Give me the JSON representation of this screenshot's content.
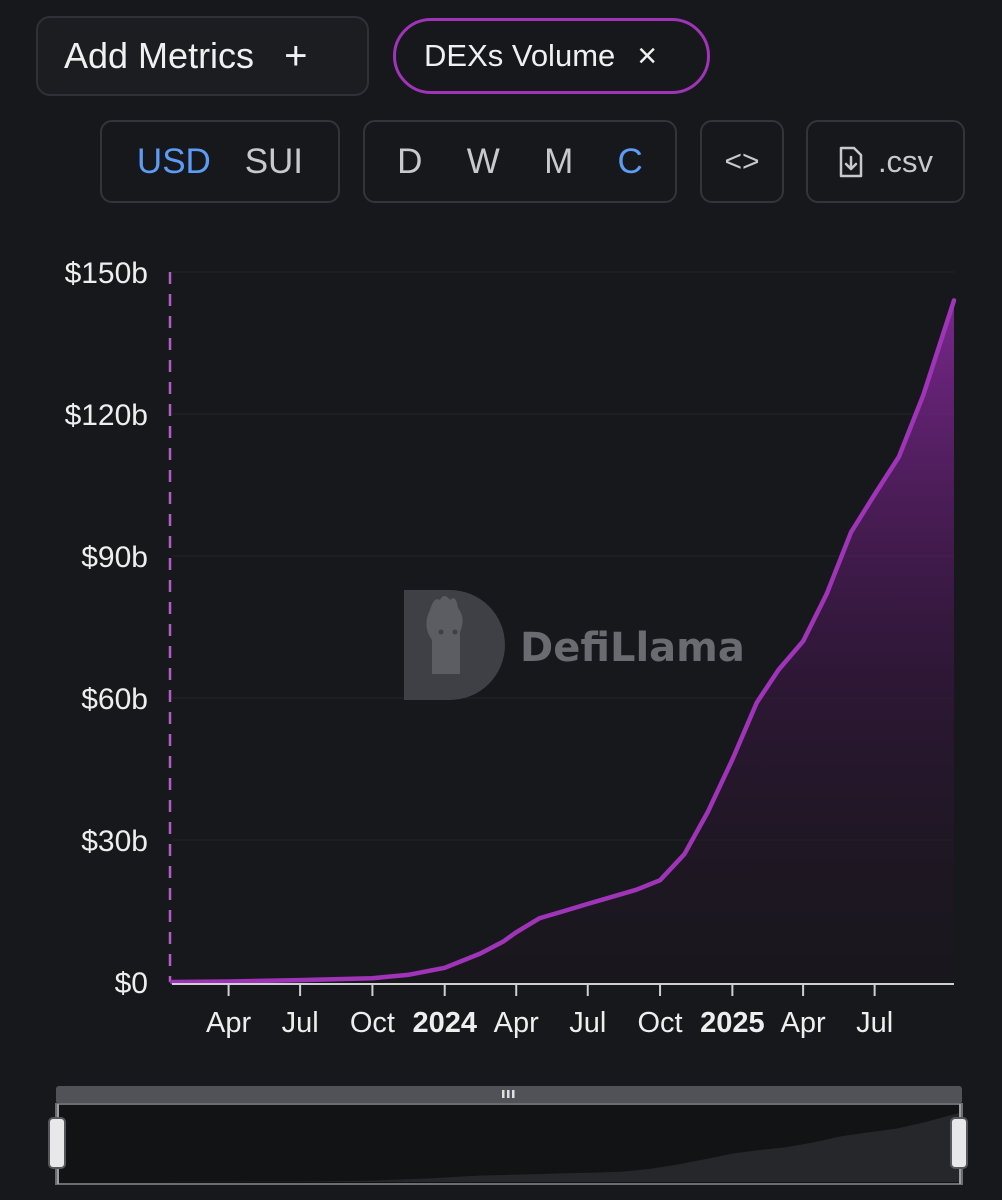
{
  "toolbar": {
    "add_metrics_label": "Add Metrics",
    "add_icon": "+",
    "metric_chip_label": "DEXs Volume",
    "close_icon": "×",
    "currency_options": [
      "USD",
      "SUI"
    ],
    "currency_selected": "USD",
    "period_options": [
      "D",
      "W",
      "M",
      "C"
    ],
    "period_selected": "C",
    "embed_label": "<>",
    "csv_label": ".csv"
  },
  "watermark": "DefiLlama",
  "colors": {
    "background": "#17181b",
    "line": "#a034b8",
    "accent_blue": "#5c9cf5"
  },
  "chart_data": {
    "type": "area",
    "y_tick_labels": [
      "$0",
      "$30b",
      "$60b",
      "$90b",
      "$120b",
      "$150b"
    ],
    "y_ticks": [
      0,
      30,
      60,
      90,
      120,
      150
    ],
    "ylim": [
      0,
      150
    ],
    "x_tick_labels": [
      {
        "date": "2023-04-01",
        "label": "Apr",
        "bold": false
      },
      {
        "date": "2023-07-01",
        "label": "Jul",
        "bold": false
      },
      {
        "date": "2023-10-01",
        "label": "Oct",
        "bold": false
      },
      {
        "date": "2024-01-01",
        "label": "2024",
        "bold": true
      },
      {
        "date": "2024-04-01",
        "label": "Apr",
        "bold": false
      },
      {
        "date": "2024-07-01",
        "label": "Jul",
        "bold": false
      },
      {
        "date": "2024-10-01",
        "label": "Oct",
        "bold": false
      },
      {
        "date": "2025-01-01",
        "label": "2025",
        "bold": true
      },
      {
        "date": "2025-04-01",
        "label": "Apr",
        "bold": false
      },
      {
        "date": "2025-07-01",
        "label": "Jul",
        "bold": false
      }
    ],
    "xlim": [
      "2023-01-19",
      "2025-10-10"
    ],
    "series": [
      {
        "values": [
          [
            "2023-01-19",
            0
          ],
          [
            "2023-04-01",
            0.1
          ],
          [
            "2023-07-01",
            0.4
          ],
          [
            "2023-10-01",
            0.8
          ],
          [
            "2023-11-15",
            1.5
          ],
          [
            "2024-01-01",
            3
          ],
          [
            "2024-02-15",
            6
          ],
          [
            "2024-03-15",
            8.5
          ],
          [
            "2024-04-01",
            10.5
          ],
          [
            "2024-05-01",
            13.5
          ],
          [
            "2024-06-01",
            15
          ],
          [
            "2024-07-01",
            16.5
          ],
          [
            "2024-08-01",
            18
          ],
          [
            "2024-09-01",
            19.5
          ],
          [
            "2024-10-01",
            21.5
          ],
          [
            "2024-11-01",
            27
          ],
          [
            "2024-12-01",
            36
          ],
          [
            "2025-01-01",
            47
          ],
          [
            "2025-02-01",
            59
          ],
          [
            "2025-03-01",
            66
          ],
          [
            "2025-04-01",
            72
          ],
          [
            "2025-05-01",
            82
          ],
          [
            "2025-06-01",
            95
          ],
          [
            "2025-07-01",
            103
          ],
          [
            "2025-08-01",
            111
          ],
          [
            "2025-09-01",
            124
          ],
          [
            "2025-10-10",
            144
          ]
        ]
      }
    ],
    "grid": true,
    "legend": "none"
  }
}
